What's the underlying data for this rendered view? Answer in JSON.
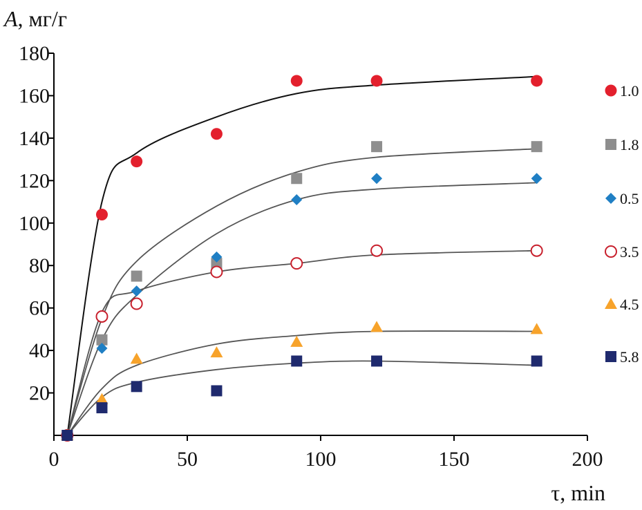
{
  "chart_data": {
    "type": "scatter",
    "title": "",
    "ylabel_var": "A",
    "ylabel_unit": ", мг/г",
    "xlabel": "τ, min",
    "xlim": [
      0,
      200
    ],
    "ylim": [
      0,
      180
    ],
    "xticks": [
      0,
      50,
      100,
      150,
      200
    ],
    "yticks": [
      20,
      40,
      60,
      80,
      100,
      120,
      140,
      160,
      180
    ],
    "legend_position": "right",
    "series": [
      {
        "name": "1.0",
        "marker": "circle",
        "color": "#e3202d",
        "x": [
          5,
          18,
          31,
          61,
          91,
          121,
          181
        ],
        "y": [
          0,
          104,
          129,
          142,
          167,
          167,
          167
        ],
        "fit_y": [
          0,
          110,
          133,
          150,
          161,
          165,
          169
        ]
      },
      {
        "name": "1.8",
        "marker": "square",
        "color": "#8e8e8e",
        "x": [
          5,
          18,
          31,
          61,
          91,
          121,
          181
        ],
        "y": [
          0,
          45,
          75,
          81,
          121,
          136,
          136
        ],
        "fit_y": [
          0,
          55,
          82,
          108,
          124,
          131,
          135
        ]
      },
      {
        "name": "0.5",
        "marker": "diamond",
        "color": "#1f7fc4",
        "x": [
          5,
          18,
          31,
          61,
          91,
          121,
          181
        ],
        "y": [
          0,
          41,
          68,
          84,
          111,
          121,
          121
        ],
        "fit_y": [
          0,
          45,
          66,
          95,
          111,
          116,
          119
        ]
      },
      {
        "name": "3.5",
        "marker": "open-circle",
        "color": "#c8202d",
        "x": [
          5,
          18,
          31,
          61,
          91,
          121,
          181
        ],
        "y": [
          0,
          56,
          62,
          77,
          81,
          87,
          87
        ],
        "fit_y": [
          0,
          58,
          68,
          77,
          81,
          85,
          87
        ]
      },
      {
        "name": "4.5",
        "marker": "triangle",
        "color": "#f7a32b",
        "x": [
          5,
          18,
          31,
          61,
          91,
          121,
          181
        ],
        "y": [
          0,
          17,
          36,
          39,
          44,
          51,
          50
        ],
        "fit_y": [
          0,
          22,
          33,
          43,
          47,
          49,
          49
        ]
      },
      {
        "name": "5.8",
        "marker": "square",
        "color": "#1f2a6e",
        "x": [
          5,
          18,
          31,
          61,
          91,
          121,
          181
        ],
        "y": [
          0,
          13,
          23,
          21,
          35,
          35,
          35
        ],
        "fit_y": [
          0,
          18,
          25,
          31,
          34,
          35,
          33
        ]
      }
    ]
  }
}
